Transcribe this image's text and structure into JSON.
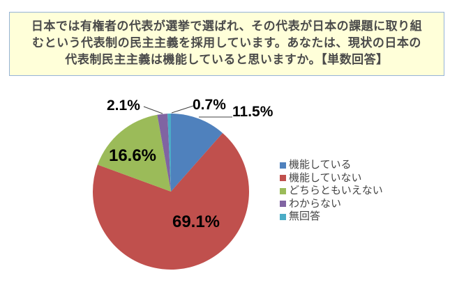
{
  "question_box": {
    "lines": [
      "日本では有権者の代表が選挙で選ばれ、その代表が日本の課題に取り組",
      "むという代表制の民主主義を採用しています。あなたは、現状の日本の",
      "代表制民主主義は機能していると思いますか。【単数回答】"
    ],
    "background": "#FFFFD9",
    "border_color": "#95B3D7",
    "text_color": "#4A4A4A"
  },
  "chart_data": {
    "type": "pie",
    "title": "",
    "categories": [
      "機能している",
      "機能していない",
      "どちらともいえない",
      "わからない",
      "無回答"
    ],
    "values": [
      11.5,
      69.1,
      16.6,
      2.1,
      0.7
    ],
    "labels": [
      "11.5%",
      "69.1%",
      "16.6%",
      "2.1%",
      "0.7%"
    ],
    "colors": [
      "#4F81BD",
      "#C0504D",
      "#9BBB59",
      "#8064A2",
      "#4BACC6"
    ],
    "start_angle_deg": 0,
    "direction": "clockwise",
    "legend_position": "right",
    "data_label_color": "#000000",
    "leader_line_color": "#404040"
  }
}
